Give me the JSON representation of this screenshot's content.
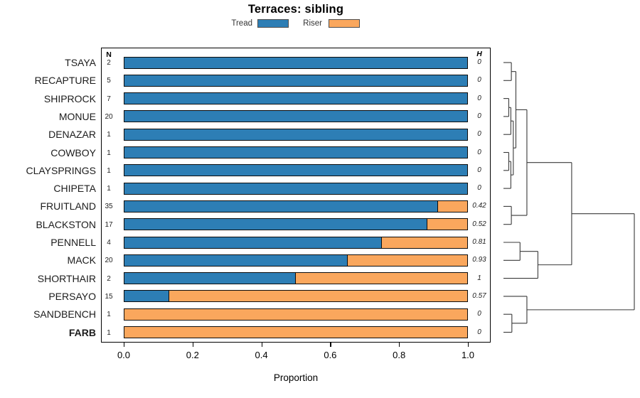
{
  "chart_data": {
    "type": "bar",
    "orientation": "horizontal",
    "stacked": true,
    "title": "Terraces: sibling",
    "xlabel": "Proportion",
    "xlim": [
      0,
      1
    ],
    "x_ticks": [
      "0.0",
      "0.2",
      "0.4",
      "0.6",
      "0.8",
      "1.0"
    ],
    "x_tick_values": [
      0,
      0.2,
      0.4,
      0.6,
      0.8,
      1.0
    ],
    "grid": false,
    "legend_position": "top",
    "legend": [
      {
        "label": "Tread",
        "color": "#2d7eb5"
      },
      {
        "label": "Riser",
        "color": "#faa75d"
      }
    ],
    "columns": {
      "n_header": "N",
      "h_header": "H"
    },
    "rows": [
      {
        "site": "TSAYA",
        "n": 2,
        "tread": 1.0,
        "riser": 0.0,
        "h": "0",
        "bold": false
      },
      {
        "site": "RECAPTURE",
        "n": 5,
        "tread": 1.0,
        "riser": 0.0,
        "h": "0",
        "bold": false
      },
      {
        "site": "SHIPROCK",
        "n": 7,
        "tread": 1.0,
        "riser": 0.0,
        "h": "0",
        "bold": false
      },
      {
        "site": "MONUE",
        "n": 20,
        "tread": 1.0,
        "riser": 0.0,
        "h": "0",
        "bold": false
      },
      {
        "site": "DENAZAR",
        "n": 1,
        "tread": 1.0,
        "riser": 0.0,
        "h": "0",
        "bold": false
      },
      {
        "site": "COWBOY",
        "n": 1,
        "tread": 1.0,
        "riser": 0.0,
        "h": "0",
        "bold": false
      },
      {
        "site": "CLAYSPRINGS",
        "n": 1,
        "tread": 1.0,
        "riser": 0.0,
        "h": "0",
        "bold": false
      },
      {
        "site": "CHIPETA",
        "n": 1,
        "tread": 1.0,
        "riser": 0.0,
        "h": "0",
        "bold": false
      },
      {
        "site": "FRUITLAND",
        "n": 35,
        "tread": 0.914,
        "riser": 0.086,
        "h": "0.42",
        "bold": false
      },
      {
        "site": "BLACKSTON",
        "n": 17,
        "tread": 0.882,
        "riser": 0.118,
        "h": "0.52",
        "bold": false
      },
      {
        "site": "PENNELL",
        "n": 4,
        "tread": 0.75,
        "riser": 0.25,
        "h": "0.81",
        "bold": false
      },
      {
        "site": "MACK",
        "n": 20,
        "tread": 0.65,
        "riser": 0.35,
        "h": "0.93",
        "bold": false
      },
      {
        "site": "SHORTHAIR",
        "n": 2,
        "tread": 0.5,
        "riser": 0.5,
        "h": "1",
        "bold": false
      },
      {
        "site": "PERSAYO",
        "n": 15,
        "tread": 0.133,
        "riser": 0.867,
        "h": "0.57",
        "bold": false
      },
      {
        "site": "SANDBENCH",
        "n": 1,
        "tread": 0.0,
        "riser": 1.0,
        "h": "0",
        "bold": false
      },
      {
        "site": "FARB",
        "n": 1,
        "tread": 0.0,
        "riser": 1.0,
        "h": "0",
        "bold": true
      }
    ],
    "dendrogram": {
      "position": "right",
      "merges": [
        {
          "id": "A",
          "a": "TSAYA",
          "b": "RECAPTURE",
          "h": 0.05
        },
        {
          "id": "B",
          "a": "SHIPROCK",
          "b": "MONUE",
          "h": 0.03
        },
        {
          "id": "C",
          "a": "B",
          "b": "DENAZAR",
          "h": 0.046
        },
        {
          "id": "D",
          "a": "COWBOY",
          "b": "CLAYSPRINGS",
          "h": 0.03
        },
        {
          "id": "E",
          "a": "D",
          "b": "CHIPETA",
          "h": 0.046
        },
        {
          "id": "F",
          "a": "C",
          "b": "E",
          "h": 0.065
        },
        {
          "id": "G",
          "a": "A",
          "b": "F",
          "h": 0.085
        },
        {
          "id": "H",
          "a": "FRUITLAND",
          "b": "BLACKSTON",
          "h": 0.05
        },
        {
          "id": "I",
          "a": "G",
          "b": "H",
          "h": 0.17
        },
        {
          "id": "J",
          "a": "PENNELL",
          "b": "MACK",
          "h": 0.117
        },
        {
          "id": "K",
          "a": "J",
          "b": "SHORTHAIR",
          "h": 0.255
        },
        {
          "id": "L",
          "a": "I",
          "b": "K",
          "h": 0.516
        },
        {
          "id": "M",
          "a": "SANDBENCH",
          "b": "FARB",
          "h": 0.054
        },
        {
          "id": "N",
          "a": "PERSAYO",
          "b": "M",
          "h": 0.17
        },
        {
          "id": "O",
          "a": "L",
          "b": "N",
          "h": 1.0
        }
      ]
    }
  }
}
